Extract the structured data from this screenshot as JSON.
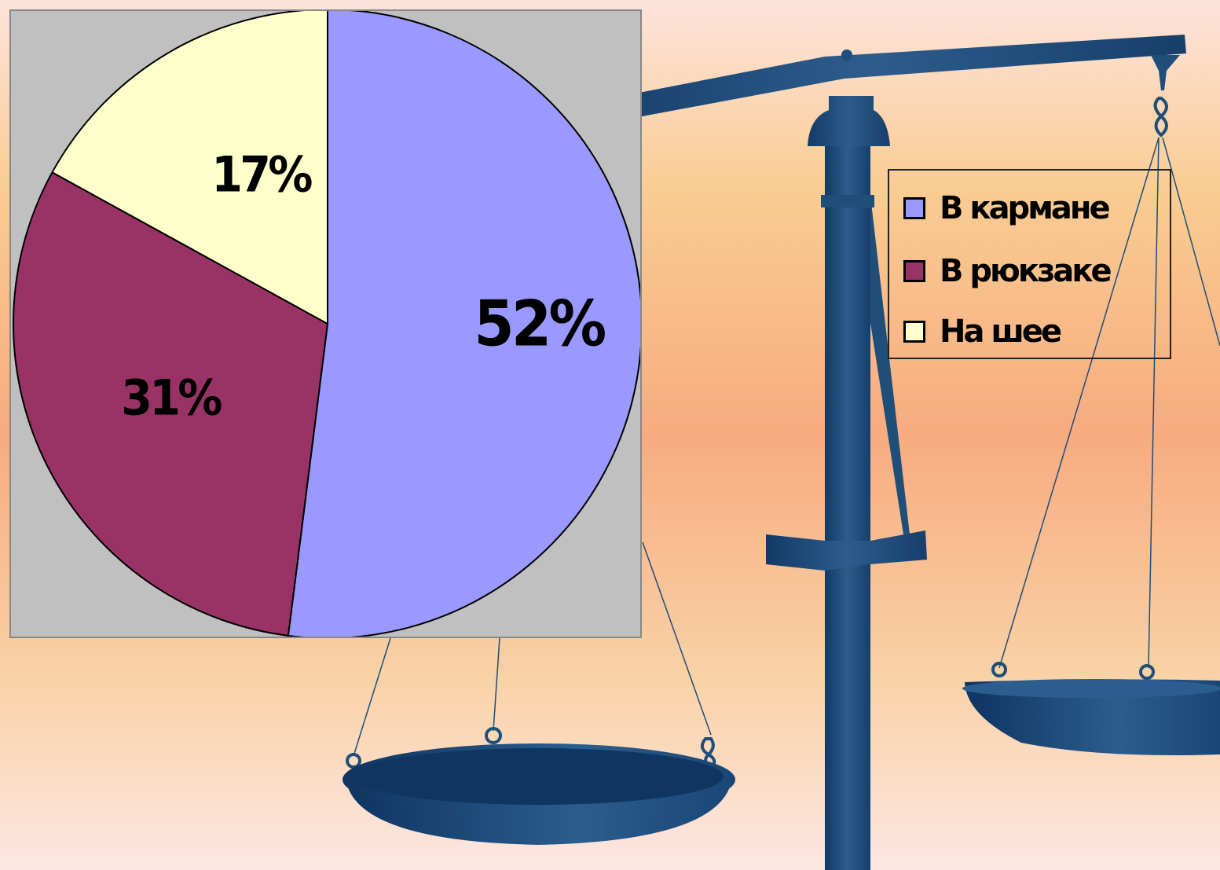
{
  "chart_data": {
    "type": "pie",
    "title": "",
    "categories": [
      "В кармане",
      "В рюкзаке",
      "На шее"
    ],
    "values": [
      52,
      31,
      17
    ],
    "labels": [
      "52%",
      "31%",
      "17%"
    ],
    "colors": [
      "#9999ff",
      "#993366",
      "#ffffcc"
    ],
    "legend": "right",
    "legend_labels": [
      "В кармане",
      "В рюкзаке",
      "На шее"
    ],
    "background": "#c0c0c0"
  },
  "decoration": {
    "scale_color": "#1f4e79",
    "background_colors": [
      "#fde3dc",
      "#f9cc92",
      "#f7ab80",
      "#fde6e3"
    ]
  }
}
